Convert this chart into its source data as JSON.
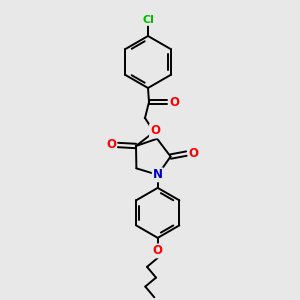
{
  "background_color": "#e8e8e8",
  "bond_color": "#000000",
  "atom_colors": {
    "O": "#ff0000",
    "N": "#0000cc",
    "Cl": "#00bb00",
    "C": "#000000"
  },
  "figsize": [
    3.0,
    3.0
  ],
  "dpi": 100,
  "xlim": [
    0,
    300
  ],
  "ylim": [
    0,
    300
  ]
}
